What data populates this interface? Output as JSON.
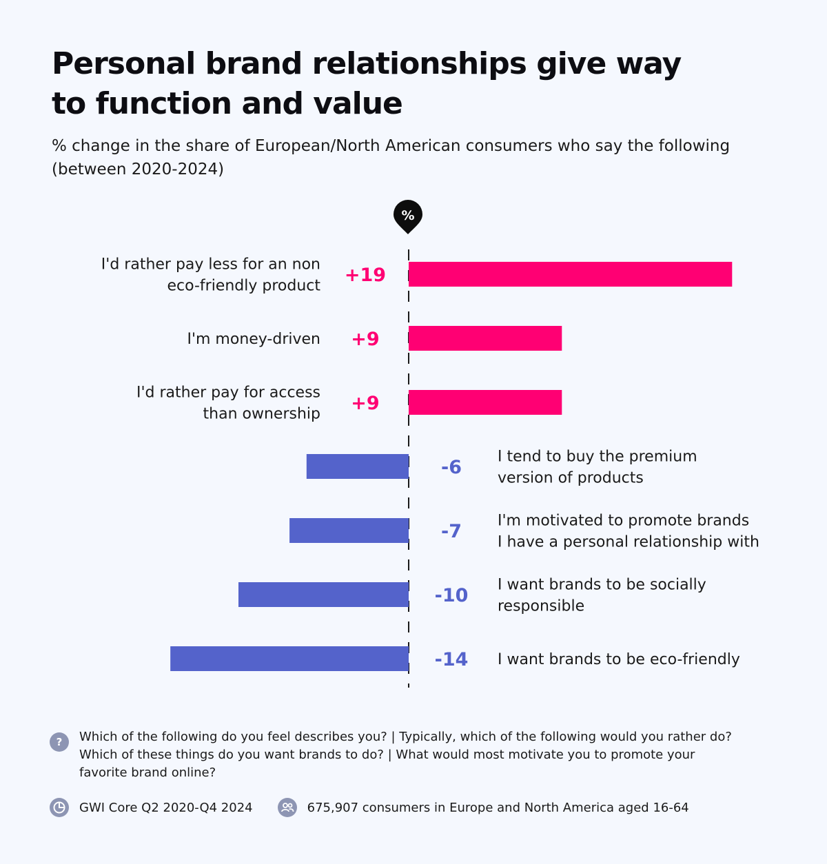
{
  "title_line1": "Personal brand relationships give way",
  "title_line2": "to function and value",
  "subtitle_line1": "% change in the share of European/North American consumers who say the following",
  "subtitle_line2": "(between 2020-2024)",
  "marker_label": "%",
  "colors": {
    "positive": "#ff0073",
    "negative": "#5463cb",
    "axis": "#1a1a1a",
    "icon": "#8d95b3"
  },
  "chart_data": {
    "type": "bar",
    "orientation": "horizontal",
    "categories": [
      [
        "I'd rather pay less for an non",
        "eco-friendly product"
      ],
      [
        "I'm money-driven"
      ],
      [
        "I'd rather pay for access",
        "than ownership"
      ],
      [
        "I tend to buy the premium",
        "version of products"
      ],
      [
        "I'm motivated to promote brands",
        "I have a personal relationship with"
      ],
      [
        "I want brands to be socially",
        "responsible"
      ],
      [
        "I want brands to be eco-friendly"
      ]
    ],
    "values": [
      19,
      9,
      9,
      -6,
      -7,
      -10,
      -14
    ],
    "value_labels": [
      "+19",
      "+9",
      "+9",
      "-6",
      "-7",
      "-10",
      "-14"
    ],
    "xlim": [
      -14,
      19
    ],
    "grid": false,
    "legend": "none"
  },
  "footer": {
    "question_icon": "?",
    "question_lines": [
      "Which of the following do you feel describes you? | Typically, which of the following would you rather do?",
      "Which of these things do you want brands to do? | What would most motivate you to promote your",
      "favorite brand online?"
    ],
    "source": "GWI Core Q2 2020-Q4 2024",
    "sample": "675,907 consumers in Europe and North America aged 16-64"
  }
}
